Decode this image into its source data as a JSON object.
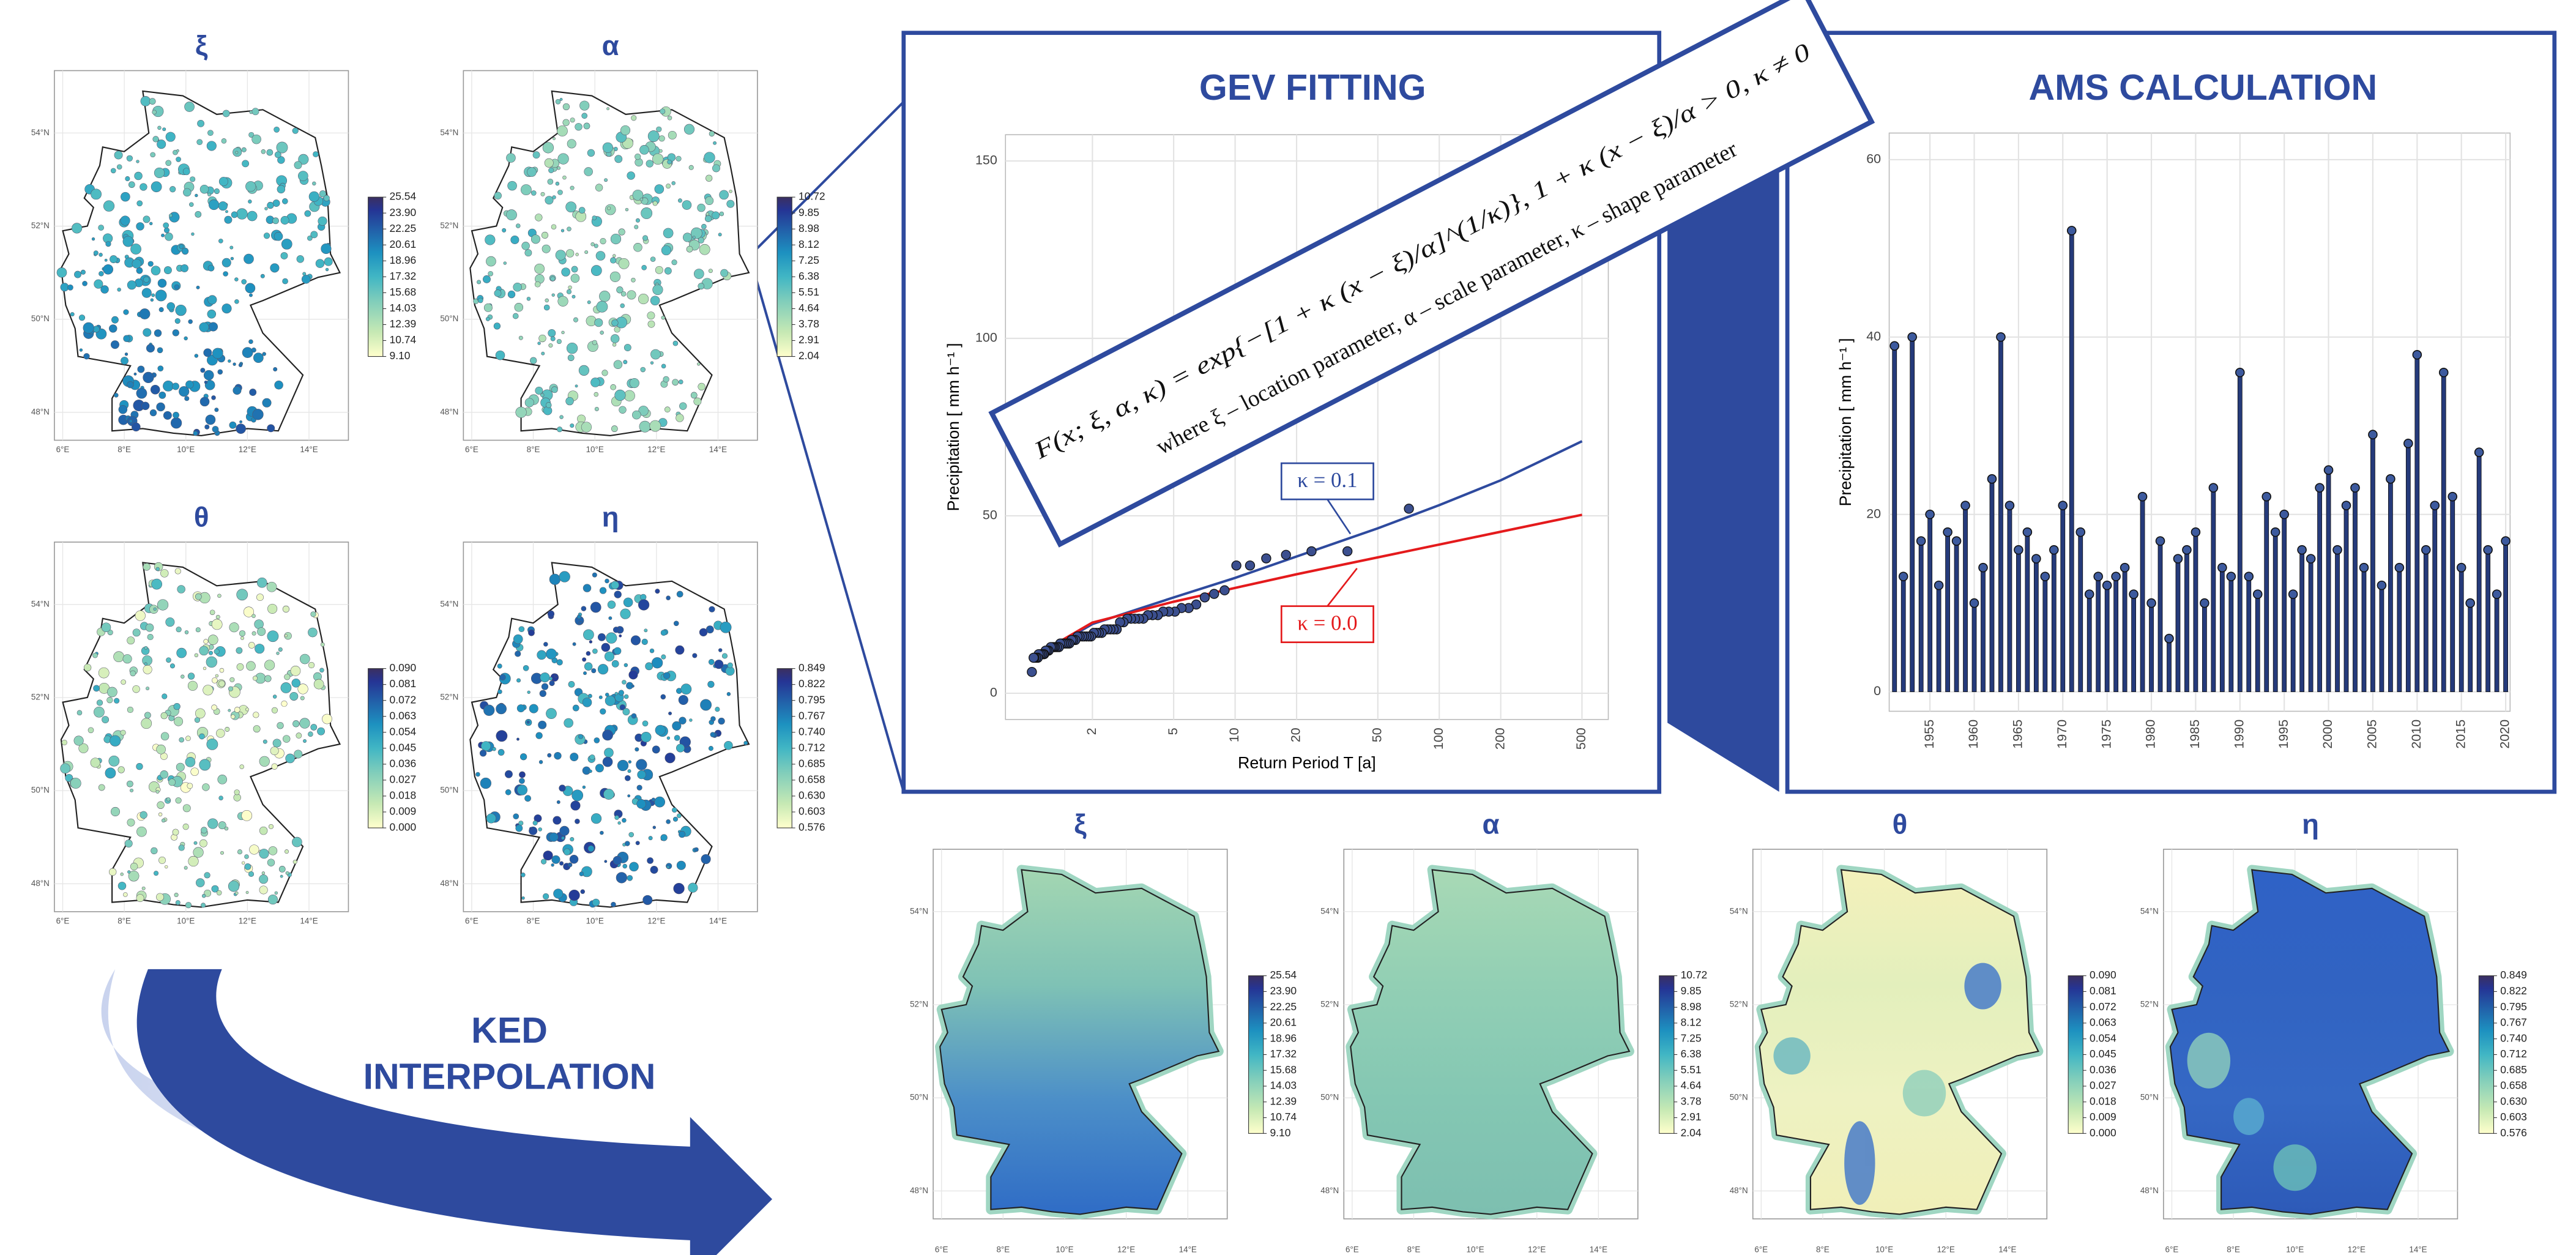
{
  "panels": {
    "gev_title": "GEV FITTING",
    "ams_title": "AMS CALCULATION",
    "ked": [
      "KED",
      "INTERPOLATION"
    ]
  },
  "formula": {
    "line1": "F(x; ξ, α, κ) = exp{−[1 + κ (x − ξ)/α]^(1/κ)}, 1 + κ (x − ξ)/α > 0, κ ≠ 0",
    "line2": "where ξ – location parameter, α – scale parameter, κ – shape parameter"
  },
  "parameters": [
    {
      "symbol": "ξ",
      "colorbar": [
        "25.54",
        "23.90",
        "22.25",
        "20.61",
        "18.96",
        "17.32",
        "15.68",
        "14.03",
        "12.39",
        "10.74",
        "9.10"
      ]
    },
    {
      "symbol": "α",
      "colorbar": [
        "10.72",
        "9.85",
        "8.98",
        "8.12",
        "7.25",
        "6.38",
        "5.51",
        "4.64",
        "3.78",
        "2.91",
        "2.04"
      ]
    },
    {
      "symbol": "θ",
      "colorbar": [
        "0.090",
        "0.081",
        "0.072",
        "0.063",
        "0.054",
        "0.045",
        "0.036",
        "0.027",
        "0.018",
        "0.009",
        "0.000"
      ]
    },
    {
      "symbol": "η",
      "colorbar": [
        "0.849",
        "0.822",
        "0.795",
        "0.767",
        "0.740",
        "0.712",
        "0.685",
        "0.658",
        "0.630",
        "0.603",
        "0.576"
      ]
    }
  ],
  "map_axes": {
    "lon_lim": [
      5.73,
      15.28
    ],
    "lat_lim": [
      47.4,
      55.34
    ],
    "lon_ticks": [
      {
        "value": 6,
        "label": "6°E"
      },
      {
        "value": 8,
        "label": "8°E"
      },
      {
        "value": 10,
        "label": "10°E"
      },
      {
        "value": 12,
        "label": "12°E"
      },
      {
        "value": 14,
        "label": "14°E"
      }
    ],
    "lat_ticks": [
      {
        "value": 48,
        "label": "48°N"
      },
      {
        "value": 50,
        "label": "50°N"
      },
      {
        "value": 52,
        "label": "52°N"
      },
      {
        "value": 54,
        "label": "54°N"
      }
    ]
  },
  "chart_data": [
    {
      "type": "scatter",
      "x_label": "Return Period T [a]",
      "y_label": "Precipitation [ mm h⁻¹ ]",
      "log_x": true,
      "xlim": [
        0.75,
        673
      ],
      "ylim": [
        -7.4,
        157.4
      ],
      "xticks": [
        2,
        5,
        10,
        20,
        50,
        100,
        200,
        500
      ],
      "yticks": [
        0,
        50,
        100,
        150
      ],
      "grid": true,
      "points": {
        "color": "#3b4f8f",
        "x": [
          71,
          35.5,
          23.67,
          17.75,
          14.2,
          11.83,
          10.14,
          8.88,
          7.89,
          7.1,
          6.45,
          5.92,
          5.46,
          5.07,
          4.73,
          4.44,
          4.18,
          3.94,
          3.74,
          3.55,
          3.38,
          3.23,
          3.09,
          2.96,
          2.84,
          2.73,
          2.63,
          2.54,
          2.45,
          2.37,
          2.29,
          2.22,
          2.15,
          2.09,
          2.03,
          1.97,
          1.92,
          1.87,
          1.82,
          1.78,
          1.73,
          1.69,
          1.65,
          1.61,
          1.58,
          1.54,
          1.51,
          1.48,
          1.45,
          1.42,
          1.39,
          1.37,
          1.34,
          1.31,
          1.29,
          1.27,
          1.25,
          1.22,
          1.2,
          1.18,
          1.16,
          1.15,
          1.13,
          1.11,
          1.09,
          1.08,
          1.06,
          1.04,
          1.03,
          1.01
        ],
        "y": [
          52,
          40,
          40,
          39,
          38,
          36,
          36,
          29,
          28,
          27,
          25,
          24,
          24,
          23,
          23,
          23,
          22,
          22,
          22,
          21,
          21,
          21,
          21,
          21,
          20,
          20,
          18,
          18,
          18,
          18,
          18,
          17,
          17,
          17,
          17,
          16,
          16,
          16,
          16,
          16,
          16,
          16,
          15,
          15,
          15,
          14,
          14,
          14,
          14,
          14,
          14,
          13,
          13,
          13,
          13,
          13,
          13,
          12,
          12,
          12,
          11,
          11,
          11,
          11,
          11,
          10,
          10,
          10,
          10,
          6
        ]
      },
      "lines": [
        {
          "name": "κ = 0.1",
          "color": "#2e4a9e",
          "x": [
            1.01,
            2,
            5,
            10,
            20,
            50,
            100,
            200,
            500
          ],
          "y": [
            9.5,
            19.5,
            27,
            32.5,
            38.5,
            46.5,
            53,
            60,
            71
          ]
        },
        {
          "name": "κ = 0.0",
          "color": "#e41a1c",
          "x": [
            1.01,
            2,
            5,
            10,
            20,
            50,
            100,
            200,
            500
          ],
          "y": [
            10,
            19.9,
            25.8,
            29.7,
            33.5,
            38.3,
            41.9,
            45.5,
            50.3
          ]
        }
      ]
    },
    {
      "type": "bar",
      "y_label": "Precipitation [ mm h⁻¹ ]",
      "color": "#253a7a",
      "x": [
        1951,
        1952,
        1953,
        1954,
        1955,
        1956,
        1957,
        1958,
        1959,
        1960,
        1961,
        1962,
        1963,
        1964,
        1965,
        1966,
        1967,
        1968,
        1969,
        1970,
        1971,
        1972,
        1973,
        1974,
        1975,
        1976,
        1977,
        1978,
        1979,
        1980,
        1981,
        1982,
        1983,
        1984,
        1985,
        1986,
        1987,
        1988,
        1989,
        1990,
        1991,
        1992,
        1993,
        1994,
        1995,
        1996,
        1997,
        1998,
        1999,
        2000,
        2001,
        2002,
        2003,
        2004,
        2005,
        2006,
        2007,
        2008,
        2009,
        2010,
        2011,
        2012,
        2013,
        2014,
        2015,
        2016,
        2017,
        2018,
        2019,
        2020
      ],
      "values": [
        39,
        13,
        40,
        17,
        20,
        12,
        18,
        17,
        21,
        10,
        14,
        24,
        40,
        21,
        16,
        18,
        15,
        13,
        16,
        21,
        52,
        18,
        11,
        13,
        12,
        13,
        14,
        11,
        22,
        10,
        17,
        6,
        15,
        16,
        18,
        10,
        23,
        14,
        13,
        36,
        13,
        11,
        22,
        18,
        20,
        11,
        16,
        15,
        23,
        25,
        16,
        21,
        23,
        14,
        29,
        12,
        24,
        14,
        28,
        38,
        16,
        21,
        36,
        22,
        14,
        10,
        27,
        16,
        11,
        17
      ],
      "xlim": [
        1950.4,
        2020.5
      ],
      "ylim": [
        -2.2,
        63
      ],
      "xticks": [
        1955,
        1960,
        1965,
        1970,
        1975,
        1980,
        1985,
        1990,
        1995,
        2000,
        2005,
        2010,
        2015,
        2020
      ],
      "yticks": [
        0,
        20,
        40,
        60
      ],
      "grid": true
    }
  ]
}
